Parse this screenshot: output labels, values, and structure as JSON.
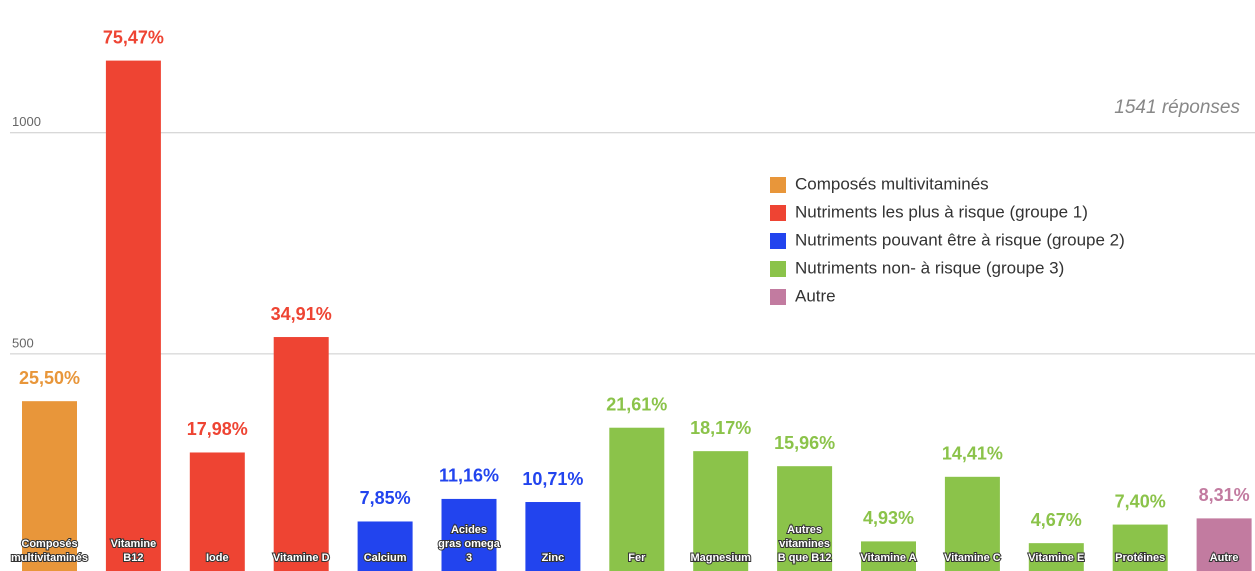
{
  "chart_data": {
    "type": "bar",
    "annotation": "1541 réponses",
    "categories": [
      "Composés multivitaminés",
      "Vitamine B12",
      "Iode",
      "Vitamine D",
      "Calcium",
      "Acides gras omega 3",
      "Zinc",
      "Fer",
      "Magnesium",
      "Autres vitamines B que B12",
      "Vitamine A",
      "Vitamine C",
      "Vitamine E",
      "Protéines",
      "Autre"
    ],
    "series": [
      {
        "name": "Composés multivitaminés",
        "color": "#e8963a",
        "values": [
          393,
          null,
          null,
          null,
          null,
          null,
          null,
          null,
          null,
          null,
          null,
          null,
          null,
          null,
          null
        ],
        "value_labels": [
          "25,50%",
          null,
          null,
          null,
          null,
          null,
          null,
          null,
          null,
          null,
          null,
          null,
          null,
          null,
          null
        ]
      },
      {
        "name": "Nutriments les plus à risque (groupe 1)",
        "color": "#ee4433",
        "values": [
          null,
          1163,
          277,
          538,
          null,
          null,
          null,
          null,
          null,
          null,
          null,
          null,
          null,
          null,
          null
        ],
        "value_labels": [
          null,
          "75,47%",
          "17,98%",
          "34,91%",
          null,
          null,
          null,
          null,
          null,
          null,
          null,
          null,
          null,
          null,
          null
        ]
      },
      {
        "name": "Nutriments pouvant être à risque (groupe 2)",
        "color": "#2244ee",
        "values": [
          null,
          null,
          null,
          null,
          121,
          172,
          165,
          null,
          null,
          null,
          null,
          null,
          null,
          null,
          null
        ],
        "value_labels": [
          null,
          null,
          null,
          null,
          "7,85%",
          "11,16%",
          "10,71%",
          null,
          null,
          null,
          null,
          null,
          null,
          null,
          null
        ]
      },
      {
        "name": "Nutriments non- à risque (groupe 3)",
        "color": "#8bc34a",
        "values": [
          null,
          null,
          null,
          null,
          null,
          null,
          null,
          333,
          280,
          246,
          76,
          222,
          72,
          114,
          null
        ],
        "value_labels": [
          null,
          null,
          null,
          null,
          null,
          null,
          null,
          "21,61%",
          "18,17%",
          "15,96%",
          "4,93%",
          "14,41%",
          "4,67%",
          "7,40%",
          null
        ]
      },
      {
        "name": "Autre",
        "color": "#c27ba0",
        "values": [
          null,
          null,
          null,
          null,
          null,
          null,
          null,
          null,
          null,
          null,
          null,
          null,
          null,
          null,
          128
        ],
        "value_labels": [
          null,
          null,
          null,
          null,
          null,
          null,
          null,
          null,
          null,
          null,
          null,
          null,
          null,
          null,
          "8,31%"
        ]
      }
    ],
    "ylim": [
      0,
      1300
    ],
    "yticks": [
      500,
      1000
    ],
    "grid": true,
    "legend": "right"
  }
}
